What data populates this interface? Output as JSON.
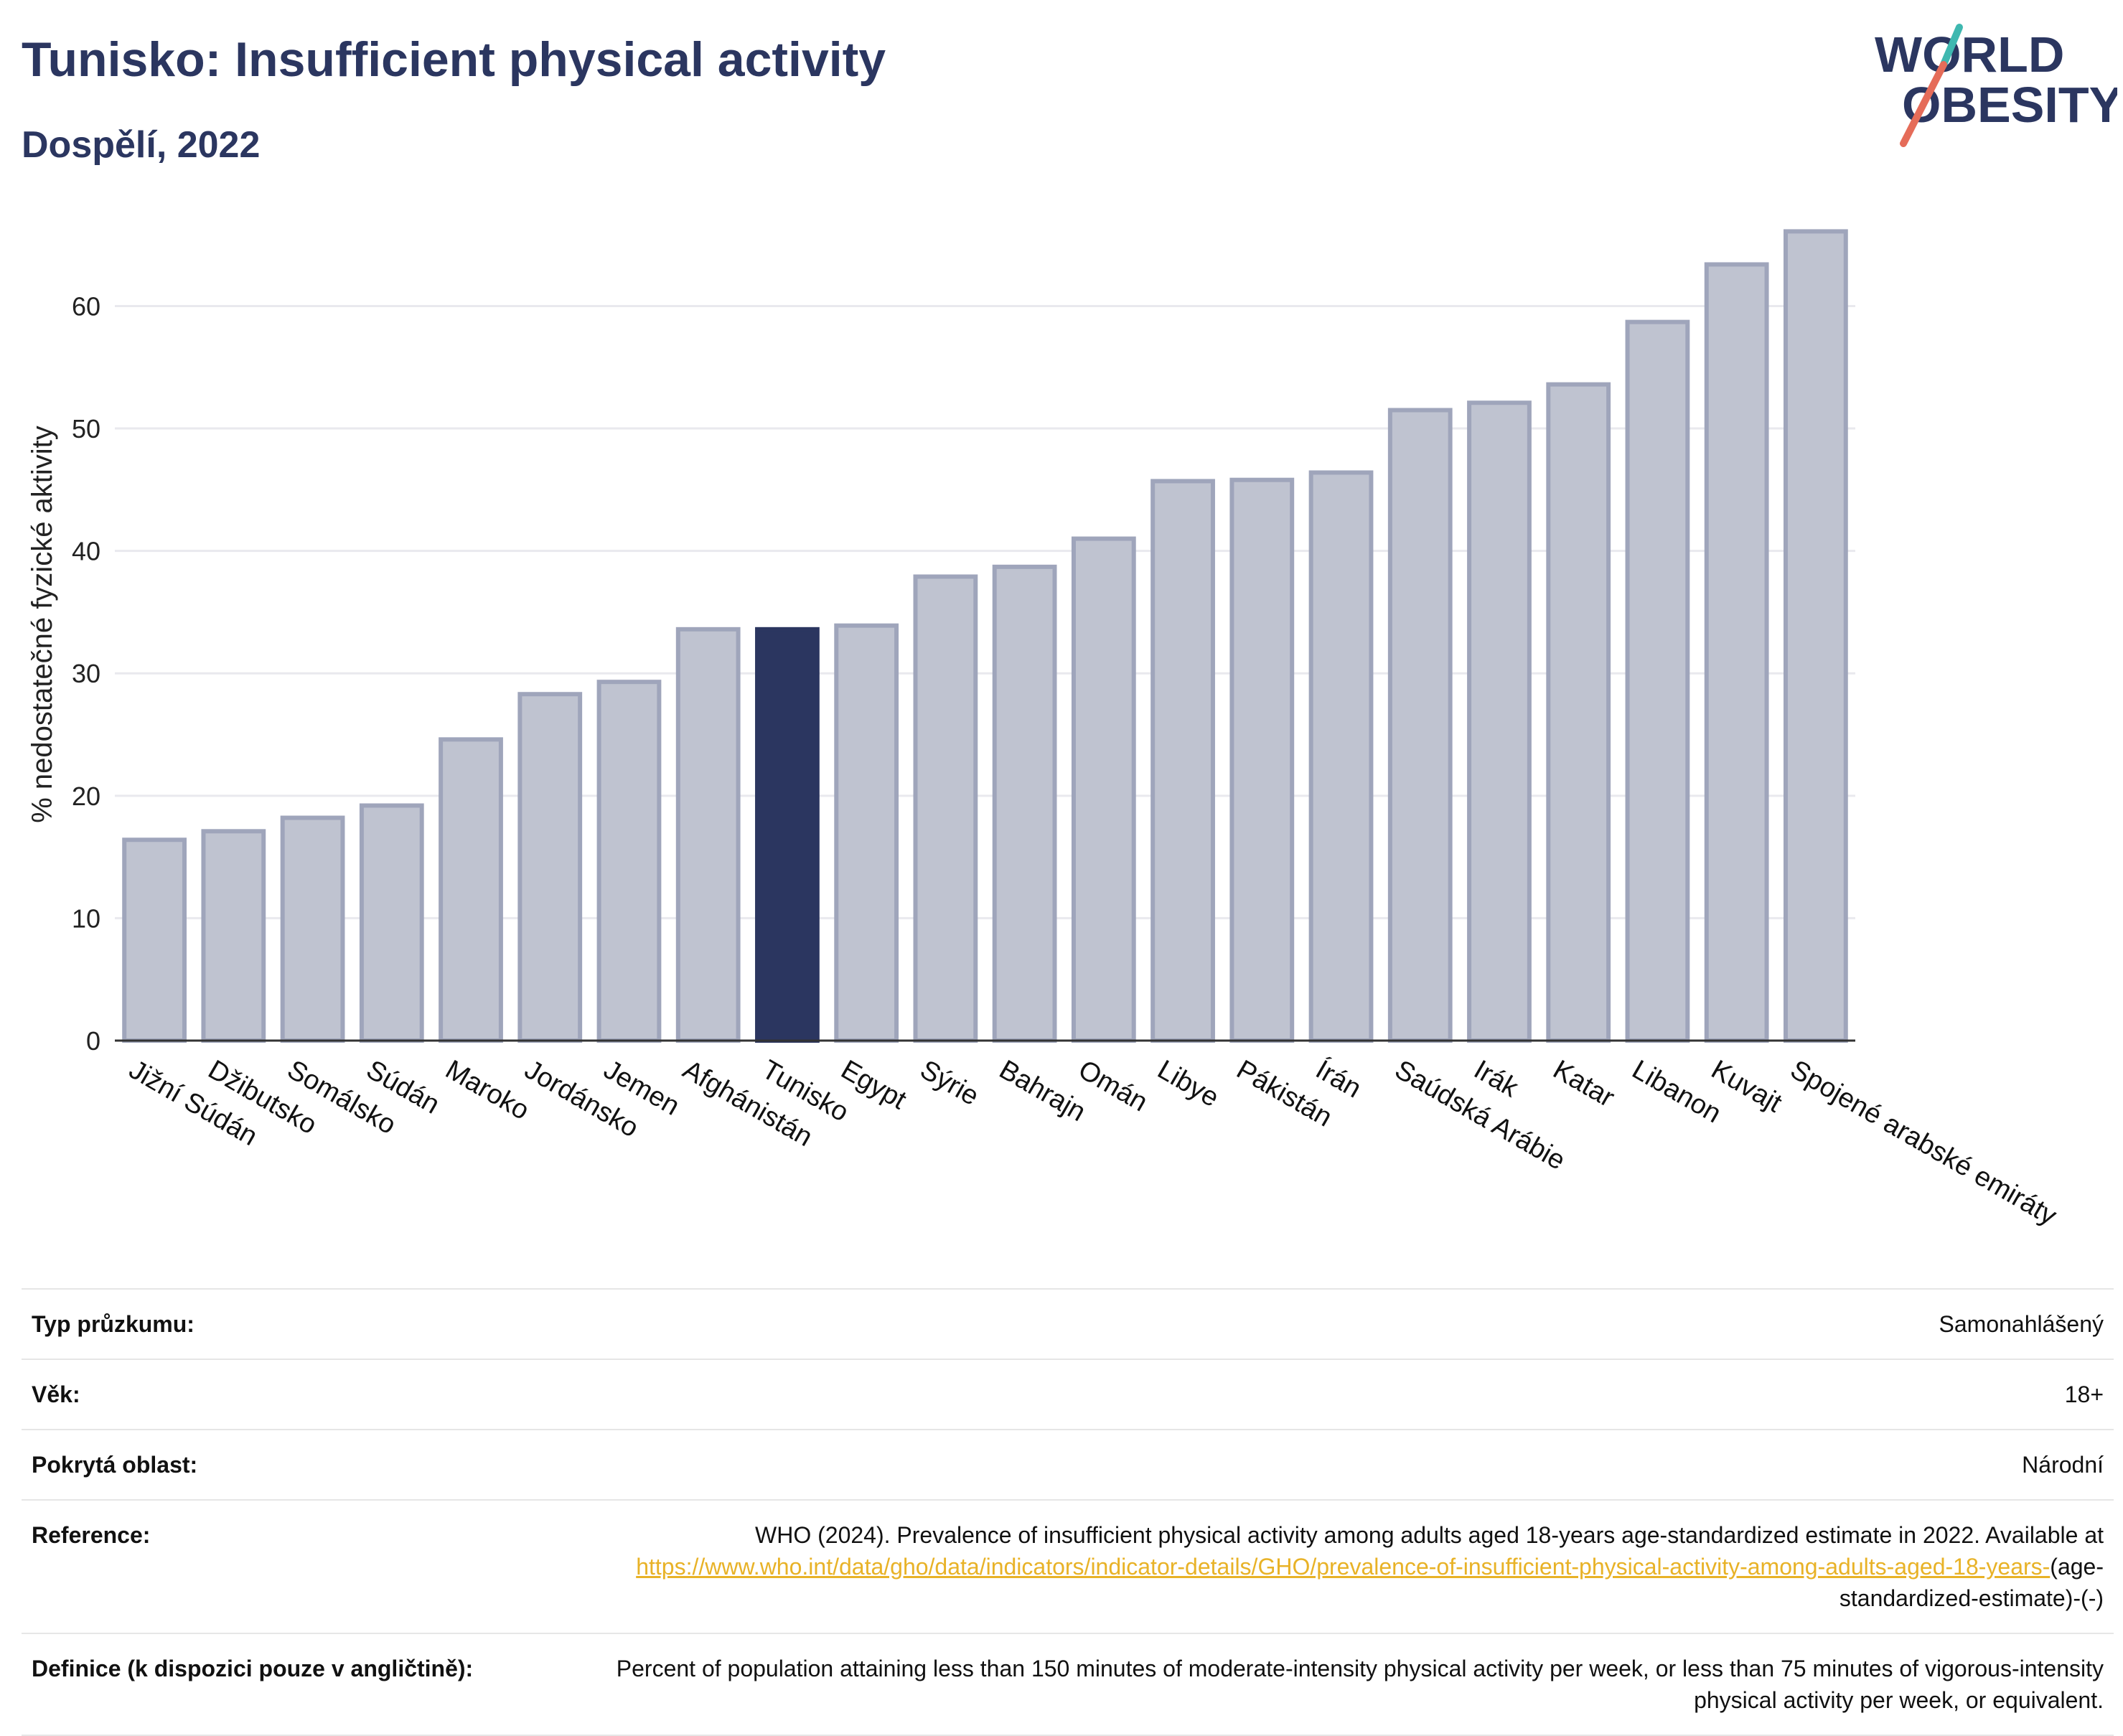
{
  "header": {
    "title": "Tunisko: Insufficient physical activity",
    "subtitle": "Dospělí, 2022"
  },
  "logo": {
    "line1": "WORLD",
    "line2": "OBESITY"
  },
  "colors": {
    "title": "#2b3660",
    "bar_default": "#bfc3d0",
    "bar_default_stroke": "#9fa5bb",
    "bar_highlight": "#2b3660",
    "grid": "#e9e9ee",
    "logo_teal": "#3fb8b0",
    "logo_coral": "#e56c59",
    "link": "#e8b227"
  },
  "chart_data": {
    "type": "bar",
    "ylabel": "% nedostatečné fyzické aktivity",
    "xlabel": "",
    "ylim": [
      0,
      68
    ],
    "yticks": [
      0,
      10,
      20,
      30,
      40,
      50,
      60
    ],
    "grid": true,
    "highlight": "Tunisko",
    "categories": [
      "Jižní Súdán",
      "Džibutsko",
      "Somálsko",
      "Súdán",
      "Maroko",
      "Jordánsko",
      "Jemen",
      "Afghánistán",
      "Tunisko",
      "Egypt",
      "Sýrie",
      "Bahrajn",
      "Omán",
      "Libye",
      "Pákistán",
      "Írán",
      "Saúdská Arábie",
      "Irák",
      "Katar",
      "Libanon",
      "Kuvajt",
      "Spojené arabské emiráty"
    ],
    "values": [
      16.4,
      17.1,
      18.2,
      19.2,
      24.6,
      28.3,
      29.3,
      33.6,
      33.6,
      33.9,
      37.9,
      38.7,
      41.0,
      45.7,
      45.8,
      46.4,
      51.5,
      52.1,
      53.6,
      58.7,
      63.4,
      66.1
    ]
  },
  "info": {
    "survey_type": {
      "label": "Typ průzkumu:",
      "value": "Samonahlášený"
    },
    "age": {
      "label": "Věk:",
      "value": "18+"
    },
    "area": {
      "label": "Pokrytá oblast:",
      "value": "Národní"
    },
    "reference": {
      "label": "Reference:",
      "text": "WHO (2024). Prevalence of insufficient physical activity among adults aged 18-years age-standardized estimate in 2022. Available at",
      "link": "https://www.who.int/data/gho/data/indicators/indicator-details/GHO/prevalence-of-insufficient-physical-activity-among-adults-aged-18-years-",
      "suffix": "(age-standardized-estimate)-(-)"
    },
    "definition": {
      "label": "Definice (k dispozici pouze v angličtině):",
      "value": "Percent of population attaining less than 150 minutes of moderate-intensity physical activity per week, or less than 75 minutes of vigorous-intensity physical activity per week, or equivalent."
    }
  }
}
